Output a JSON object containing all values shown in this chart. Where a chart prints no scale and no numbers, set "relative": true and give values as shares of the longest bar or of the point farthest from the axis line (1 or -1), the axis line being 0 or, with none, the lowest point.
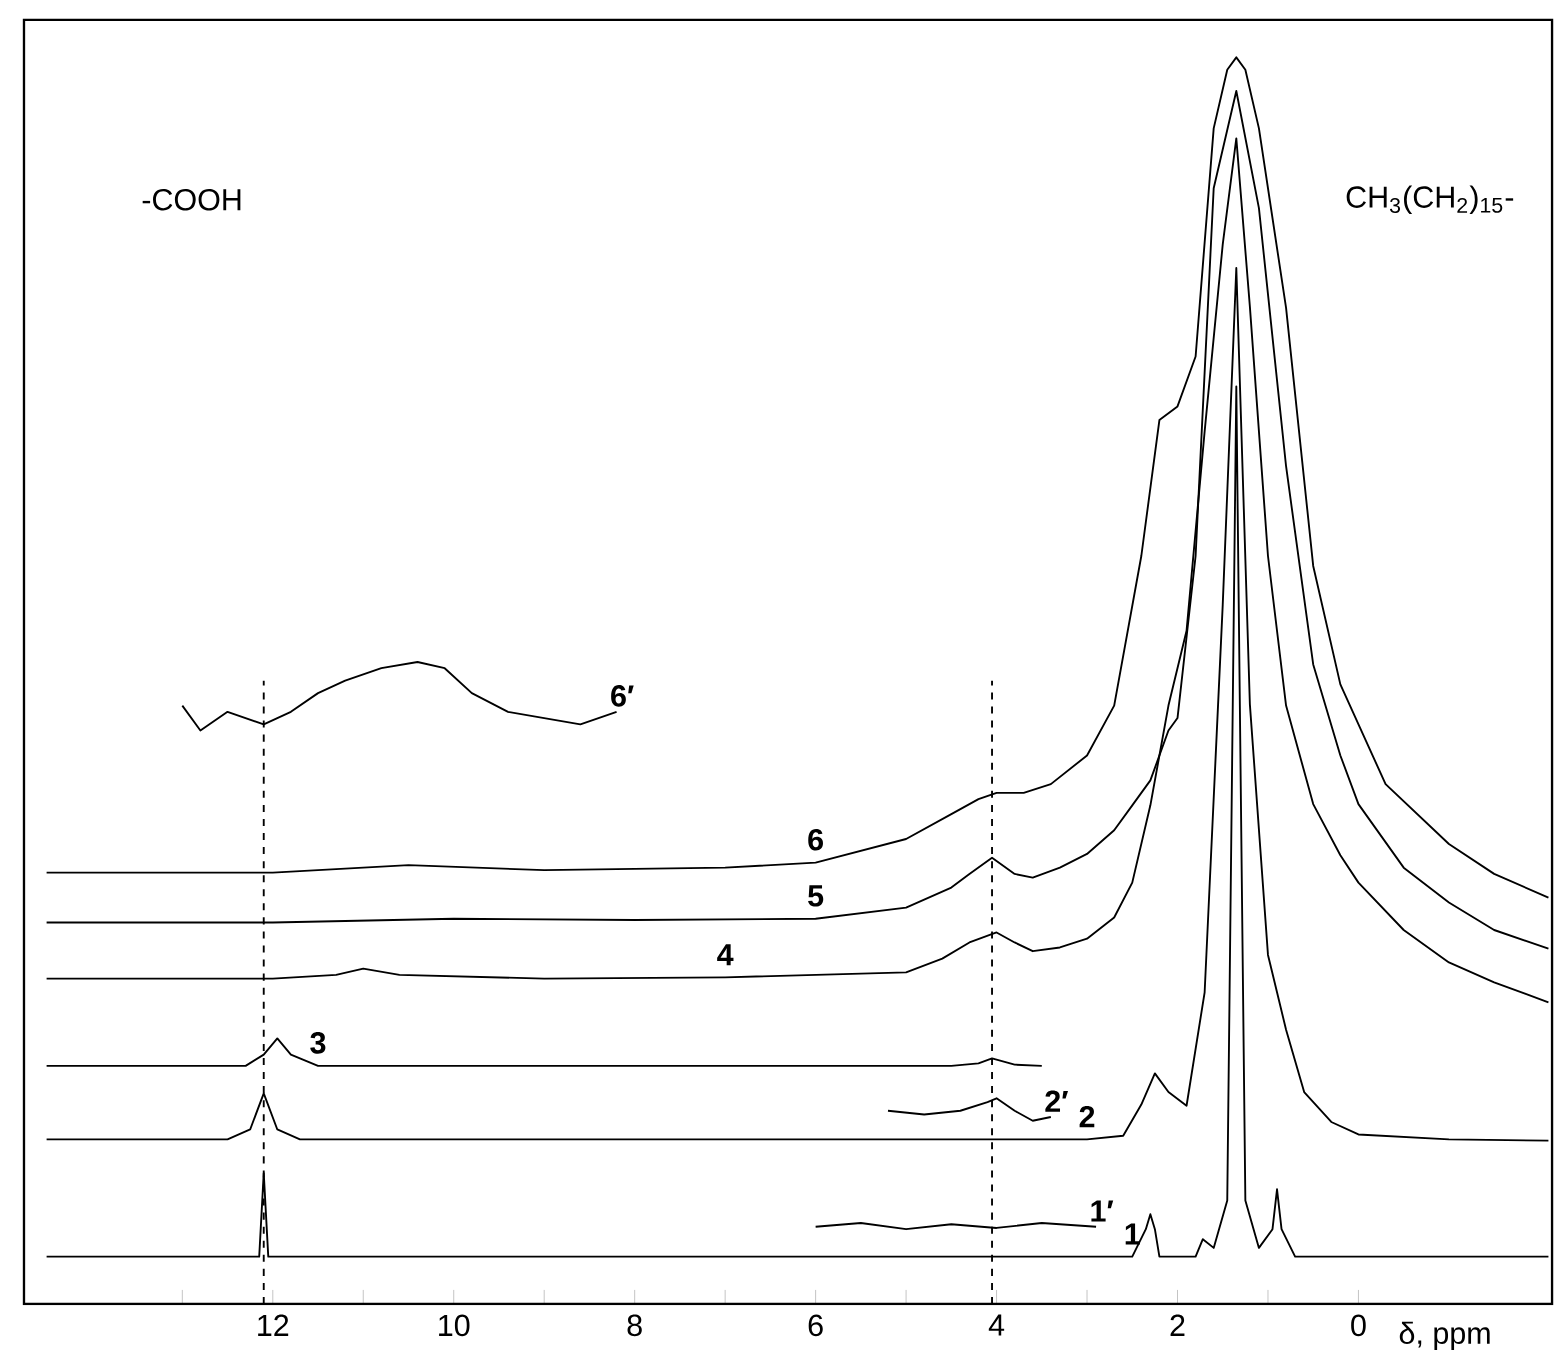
{
  "chart_data": {
    "type": "line",
    "relative": true,
    "xlabel": "δ, ppm",
    "xlim": [
      14.75,
      -2.14
    ],
    "xticks": [
      {
        "value": 13,
        "label": null
      },
      12,
      {
        "value": 11,
        "label": null
      },
      10,
      {
        "value": 9,
        "label": null
      },
      8,
      {
        "value": 7,
        "label": null
      },
      6,
      {
        "value": 5,
        "label": null
      },
      4,
      {
        "value": 3,
        "label": null
      },
      2,
      {
        "value": 1,
        "label": null
      },
      0
    ],
    "series": [
      {
        "name": "1",
        "color": "#000000",
        "x": [
          14.5,
          12.3,
          12.15,
          12.1,
          12.05,
          11.9,
          2.5,
          2.35,
          2.3,
          2.25,
          2.2,
          1.8,
          1.72,
          1.6,
          1.45,
          1.35,
          1.25,
          1.1,
          0.95,
          0.9,
          0.85,
          0.7,
          -2.1
        ],
        "values": [
          0.038,
          0.038,
          0.038,
          0.105,
          0.038,
          0.038,
          0.038,
          0.06,
          0.072,
          0.06,
          0.038,
          0.038,
          0.052,
          0.045,
          0.083,
          0.736,
          0.083,
          0.045,
          0.06,
          0.092,
          0.06,
          0.038,
          0.038
        ]
      },
      {
        "name": "2",
        "color": "#000000",
        "x": [
          14.5,
          12.5,
          12.25,
          12.1,
          11.95,
          11.7,
          3.0,
          2.6,
          2.4,
          2.25,
          2.1,
          1.9,
          1.7,
          1.5,
          1.35,
          1.2,
          1.0,
          0.9,
          0.8,
          0.6,
          0.3,
          0,
          -1,
          -2.1
        ],
        "values": [
          0.132,
          0.132,
          0.14,
          0.169,
          0.14,
          0.132,
          0.132,
          0.135,
          0.16,
          0.185,
          0.17,
          0.159,
          0.25,
          0.561,
          0.831,
          0.481,
          0.28,
          0.25,
          0.22,
          0.17,
          0.146,
          0.136,
          0.132,
          0.131
        ]
      },
      {
        "name": "3",
        "color": "#000000",
        "x": [
          14.5,
          12.3,
          12.1,
          11.95,
          11.8,
          11.5,
          4.5,
          4.2,
          4.05,
          3.8,
          3.5
        ],
        "values": [
          0.191,
          0.191,
          0.2,
          0.213,
          0.2,
          0.191,
          0.191,
          0.193,
          0.197,
          0.192,
          0.191
        ]
      },
      {
        "name": "4",
        "color": "#000000",
        "x": [
          14.5,
          12,
          11.3,
          11.0,
          10.6,
          9,
          7,
          5,
          4.6,
          4.3,
          4.0,
          3.8,
          3.6,
          3.3,
          3.0,
          2.7,
          2.5,
          2.3,
          2.1,
          1.9,
          1.7,
          1.5,
          1.35,
          1.2,
          1.0,
          0.8,
          0.5,
          0.2,
          0,
          -0.5,
          -1,
          -1.5,
          -2.1
        ],
        "values": [
          0.261,
          0.261,
          0.264,
          0.269,
          0.264,
          0.261,
          0.262,
          0.266,
          0.277,
          0.29,
          0.298,
          0.29,
          0.283,
          0.286,
          0.293,
          0.31,
          0.338,
          0.4,
          0.48,
          0.54,
          0.7,
          0.85,
          0.935,
          0.8,
          0.6,
          0.48,
          0.401,
          0.36,
          0.338,
          0.3,
          0.274,
          0.258,
          0.242
        ]
      },
      {
        "name": "5",
        "color": "#000000",
        "x": [
          14.5,
          12,
          10,
          8,
          6,
          5,
          4.5,
          4.3,
          4.05,
          3.8,
          3.6,
          3.3,
          3.0,
          2.7,
          2.5,
          2.3,
          2.1,
          2.0,
          1.8,
          1.6,
          1.35,
          1.1,
          0.8,
          0.5,
          0.2,
          0,
          -0.5,
          -1,
          -1.5,
          -2.1
        ],
        "values": [
          0.306,
          0.306,
          0.309,
          0.308,
          0.309,
          0.318,
          0.334,
          0.345,
          0.358,
          0.345,
          0.342,
          0.35,
          0.361,
          0.38,
          0.4,
          0.42,
          0.46,
          0.47,
          0.6,
          0.895,
          0.973,
          0.879,
          0.672,
          0.513,
          0.44,
          0.401,
          0.35,
          0.322,
          0.3,
          0.285
        ]
      },
      {
        "name": "6",
        "color": "#000000",
        "x": [
          14.5,
          12,
          10.5,
          9,
          7,
          6,
          5,
          4.5,
          4.2,
          4.0,
          3.7,
          3.4,
          3.0,
          2.7,
          2.4,
          2.2,
          2.0,
          1.8,
          1.6,
          1.45,
          1.35,
          1.25,
          1.1,
          0.8,
          0.5,
          0.2,
          -0.3,
          -1,
          -1.5,
          -2.1
        ],
        "values": [
          0.346,
          0.346,
          0.352,
          0.348,
          0.35,
          0.354,
          0.373,
          0.393,
          0.405,
          0.41,
          0.41,
          0.417,
          0.44,
          0.48,
          0.6,
          0.709,
          0.72,
          0.76,
          0.943,
          0.99,
          1.0,
          0.99,
          0.943,
          0.799,
          0.592,
          0.497,
          0.417,
          0.369,
          0.345,
          0.326
        ]
      },
      {
        "name": "1′",
        "color": "#000000",
        "x": [
          6,
          5.5,
          5,
          4.5,
          4,
          3.5,
          2.9
        ],
        "values": [
          0.062,
          0.065,
          0.06,
          0.064,
          0.061,
          0.065,
          0.062
        ]
      },
      {
        "name": "2′",
        "color": "#000000",
        "x": [
          5.2,
          4.8,
          4.4,
          4.1,
          4.0,
          3.8,
          3.6,
          3.4
        ],
        "values": [
          0.155,
          0.152,
          0.155,
          0.162,
          0.165,
          0.155,
          0.147,
          0.15
        ]
      },
      {
        "name": "6′",
        "color": "#000000",
        "x": [
          13,
          12.8,
          12.5,
          12.1,
          11.8,
          11.5,
          11.2,
          10.8,
          10.4,
          10.1,
          9.8,
          9.4,
          9.0,
          8.6,
          8.2
        ],
        "values": [
          0.48,
          0.46,
          0.475,
          0.465,
          0.475,
          0.49,
          0.5,
          0.51,
          0.515,
          0.51,
          0.49,
          0.475,
          0.47,
          0.465,
          0.475
        ]
      }
    ],
    "ref_lines": [
      {
        "axis": "x",
        "value": 12.1,
        "line_style": "dashed"
      },
      {
        "axis": "x",
        "value": 4.05,
        "line_style": "dashed"
      }
    ],
    "annotations": [
      "-COOH",
      "CH$_{3}$(CH$_{2}$)$_{15}$-"
    ]
  }
}
